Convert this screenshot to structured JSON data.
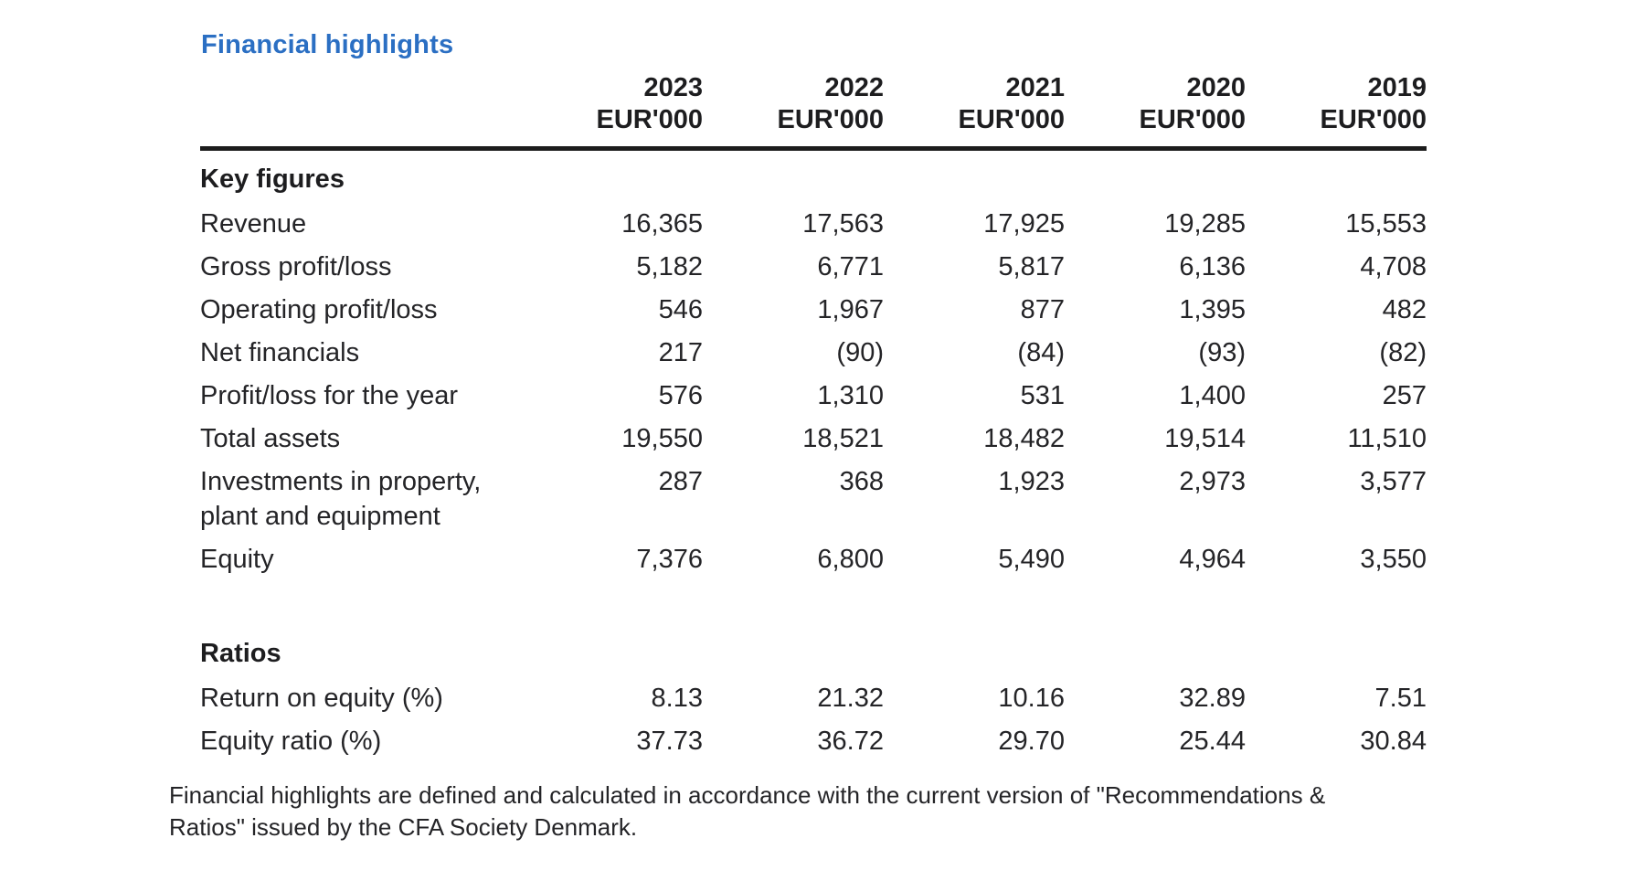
{
  "title": "Financial highlights",
  "table": {
    "year_headers": [
      "2023",
      "2022",
      "2021",
      "2020",
      "2019"
    ],
    "unit": "EUR'000",
    "sections": [
      {
        "heading": "Key figures",
        "rows": [
          {
            "label": "Revenue",
            "values": [
              "16,365",
              "17,563",
              "17,925",
              "19,285",
              "15,553"
            ]
          },
          {
            "label": "Gross profit/loss",
            "values": [
              "5,182",
              "6,771",
              "5,817",
              "6,136",
              "4,708"
            ]
          },
          {
            "label": "Operating profit/loss",
            "values": [
              "546",
              "1,967",
              "877",
              "1,395",
              "482"
            ]
          },
          {
            "label": "Net financials",
            "values": [
              "217",
              "(90)",
              "(84)",
              "(93)",
              "(82)"
            ]
          },
          {
            "label": "Profit/loss for the year",
            "values": [
              "576",
              "1,310",
              "531",
              "1,400",
              "257"
            ]
          },
          {
            "label": "Total assets",
            "values": [
              "19,550",
              "18,521",
              "18,482",
              "19,514",
              "11,510"
            ]
          },
          {
            "label": "Investments in property, plant and equipment",
            "values": [
              "287",
              "368",
              "1,923",
              "2,973",
              "3,577"
            ]
          },
          {
            "label": "Equity",
            "values": [
              "7,376",
              "6,800",
              "5,490",
              "4,964",
              "3,550"
            ]
          }
        ]
      },
      {
        "heading": "Ratios",
        "rows": [
          {
            "label": "Return on equity (%)",
            "values": [
              "8.13",
              "21.32",
              "10.16",
              "32.89",
              "7.51"
            ]
          },
          {
            "label": "Equity ratio (%)",
            "values": [
              "37.73",
              "36.72",
              "29.70",
              "25.44",
              "30.84"
            ]
          }
        ]
      }
    ]
  },
  "footnote": "Financial highlights are defined and calculated in accordance with the current version of \"Recommendations & Ratios\" issued by the CFA Society Denmark.",
  "colors": {
    "title_accent": "#2b6fc3",
    "text": "#242427",
    "rule": "#1c1c1c",
    "background": "#ffffff"
  }
}
